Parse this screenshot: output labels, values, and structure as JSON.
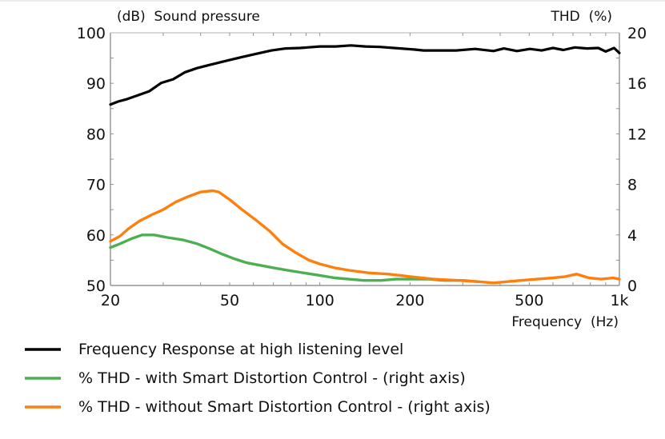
{
  "chart_data": {
    "type": "line",
    "title": "",
    "left_axis_title": "(dB)  Sound pressure",
    "right_axis_title": "THD  (%)",
    "xlabel": "Frequency  (Hz)",
    "x_scale": "log",
    "xlim": [
      20,
      1000
    ],
    "ylim_left": [
      50,
      100
    ],
    "ylim_right": [
      0,
      20
    ],
    "x_ticks": [
      {
        "value": 20,
        "label": "20"
      },
      {
        "value": 50,
        "label": "50"
      },
      {
        "value": 100,
        "label": "100"
      },
      {
        "value": 200,
        "label": "200"
      },
      {
        "value": 500,
        "label": "500"
      },
      {
        "value": 1000,
        "label": "1k"
      }
    ],
    "y_ticks_left": [
      {
        "value": 50,
        "label": "50"
      },
      {
        "value": 60,
        "label": "60"
      },
      {
        "value": 70,
        "label": "70"
      },
      {
        "value": 80,
        "label": "80"
      },
      {
        "value": 90,
        "label": "90"
      },
      {
        "value": 100,
        "label": "100"
      }
    ],
    "y_ticks_right": [
      {
        "value": 0,
        "label": "0"
      },
      {
        "value": 4,
        "label": "4"
      },
      {
        "value": 8,
        "label": "8"
      },
      {
        "value": 12,
        "label": "12"
      },
      {
        "value": 16,
        "label": "16"
      },
      {
        "value": 20,
        "label": "20"
      }
    ],
    "grid": false,
    "legend_position": "bottom",
    "series": [
      {
        "name": "Frequency Response at high listening level",
        "axis": "left",
        "color": "#000000",
        "x": [
          20,
          21.2,
          22.8,
          24.6,
          26.9,
          29.6,
          32.4,
          35.5,
          38.9,
          42.6,
          49,
          55,
          62,
          69,
          77,
          86,
          100,
          113,
          127,
          142,
          159,
          186,
          206,
          222,
          247,
          285,
          330,
          380,
          412,
          455,
          503,
          550,
          600,
          650,
          710,
          780,
          850,
          900,
          960,
          1000
        ],
        "values": [
          85.8,
          86.4,
          86.9,
          87.6,
          88.4,
          90.1,
          90.8,
          92.2,
          93.0,
          93.6,
          94.5,
          95.2,
          95.9,
          96.5,
          96.9,
          97.0,
          97.3,
          97.3,
          97.5,
          97.3,
          97.2,
          96.9,
          96.7,
          96.5,
          96.5,
          96.5,
          96.8,
          96.4,
          96.9,
          96.4,
          96.8,
          96.5,
          97.0,
          96.6,
          97.1,
          96.9,
          97.0,
          96.3,
          97.0,
          96.0
        ]
      },
      {
        "name": "% THD - with Smart Distortion Control - (right axis)",
        "axis": "right",
        "color": "#4caf50",
        "x": [
          20,
          21.5,
          23.5,
          25.5,
          28,
          31,
          35,
          39,
          43,
          47,
          52,
          57,
          63,
          70,
          78,
          88,
          100,
          112,
          125,
          140,
          160,
          180,
          200,
          230,
          260,
          300,
          340
        ],
        "values": [
          3.0,
          3.3,
          3.7,
          4.0,
          4.0,
          3.8,
          3.6,
          3.3,
          2.9,
          2.5,
          2.1,
          1.8,
          1.6,
          1.4,
          1.2,
          1.0,
          0.8,
          0.6,
          0.5,
          0.4,
          0.4,
          0.5,
          0.5,
          0.5,
          0.4,
          0.4,
          0.3
        ]
      },
      {
        "name": "% THD - without Smart Distortion Control - (right axis)",
        "axis": "right",
        "color": "#ff7f0e",
        "x": [
          20,
          21.5,
          23,
          25,
          27.5,
          30,
          33,
          36,
          40,
          44,
          46,
          50,
          55,
          61,
          68,
          75,
          83,
          92,
          100,
          112,
          125,
          145,
          170,
          200,
          240,
          290,
          340,
          380,
          420,
          470,
          530,
          600,
          660,
          720,
          790,
          870,
          950,
          1000
        ],
        "values": [
          3.5,
          3.9,
          4.5,
          5.1,
          5.6,
          6.0,
          6.6,
          7.0,
          7.4,
          7.5,
          7.4,
          6.8,
          6.0,
          5.2,
          4.3,
          3.3,
          2.6,
          2.0,
          1.7,
          1.4,
          1.2,
          1.0,
          0.9,
          0.7,
          0.5,
          0.4,
          0.3,
          0.2,
          0.3,
          0.4,
          0.5,
          0.6,
          0.7,
          0.9,
          0.6,
          0.5,
          0.6,
          0.5
        ]
      }
    ]
  }
}
